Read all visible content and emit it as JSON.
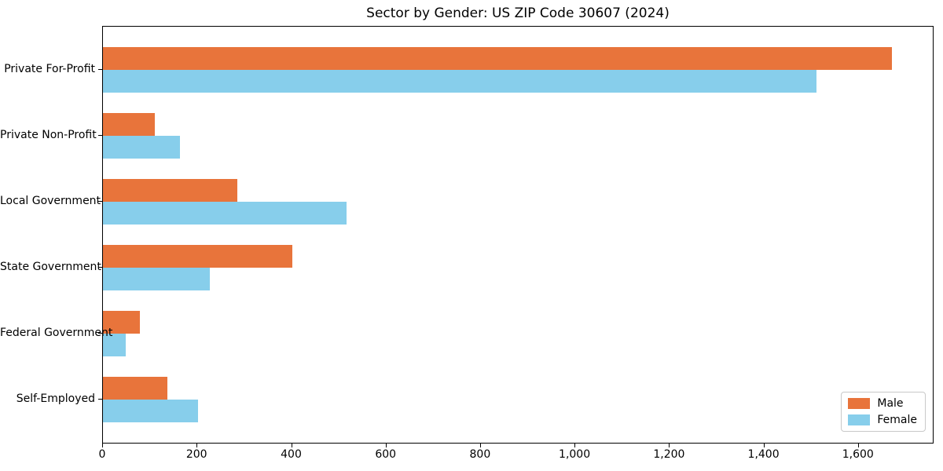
{
  "chart_data": {
    "type": "bar",
    "orientation": "horizontal",
    "title": "Sector by Gender: US ZIP Code 30607 (2024)",
    "categories": [
      "Private For-Profit",
      "Private Non-Profit",
      "Local Government",
      "State Government",
      "Federal Government",
      "Self-Employed"
    ],
    "series": [
      {
        "name": "Male",
        "color": "#E8743B",
        "values": [
          1670,
          110,
          285,
          400,
          78,
          136
        ]
      },
      {
        "name": "Female",
        "color": "#87CEEB",
        "values": [
          1510,
          163,
          515,
          226,
          48,
          201
        ]
      }
    ],
    "xlabel": "",
    "ylabel": "",
    "xlim": [
      0,
      1760
    ],
    "xticks": [
      0,
      200,
      400,
      600,
      800,
      1000,
      1200,
      1400,
      1600
    ],
    "xtick_labels": [
      "0",
      "200",
      "400",
      "600",
      "800",
      "1,000",
      "1,200",
      "1,400",
      "1,600"
    ],
    "grid": false,
    "legend_position": "lower right",
    "background_color": "#ffffff",
    "axis_color": "#000000"
  }
}
